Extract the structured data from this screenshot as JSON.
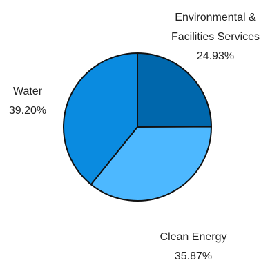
{
  "chart_data": {
    "type": "pie",
    "title": "",
    "slices": [
      {
        "label_lines": [
          "Environmental &",
          "Facilities Services"
        ],
        "value": 24.93,
        "value_label": "24.93%",
        "color": "#0067AC"
      },
      {
        "label_lines": [
          "Clean Energy"
        ],
        "value": 35.87,
        "value_label": "35.87%",
        "color": "#4DB8FF"
      },
      {
        "label_lines": [
          "Water"
        ],
        "value": 39.2,
        "value_label": "39.20%",
        "color": "#0A8BE0"
      }
    ],
    "start_angle_deg": 0,
    "direction": "clockwise",
    "outline_color": "#111111",
    "legend": "none"
  }
}
